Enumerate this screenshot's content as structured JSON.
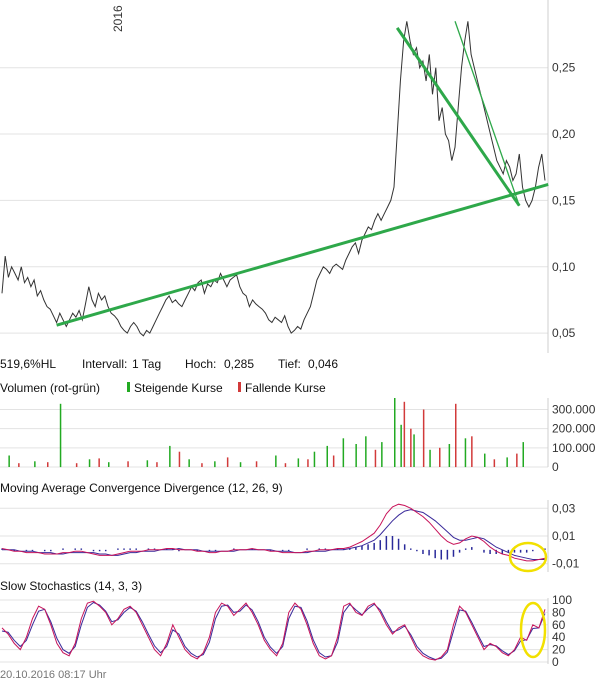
{
  "colors": {
    "price_line": "#333333",
    "trend": "#2ea84a",
    "volume_up": "#22aa22",
    "volume_down": "#d23a3a",
    "macd_line": "#c8145a",
    "signal_line": "#3a2a9a",
    "histogram": "#2a2a9a",
    "highlight": "#f2e000",
    "grid": "#e3e3e3"
  },
  "footer": {
    "timestamp": "20.10.2016 08:17 Uhr"
  },
  "chart_data": [
    {
      "type": "line",
      "panel": "price",
      "year_label": "2016",
      "y_ticks": [
        "0,05",
        "0,10",
        "0,15",
        "0,20",
        "0,25"
      ],
      "y_tick_values": [
        0.05,
        0.1,
        0.15,
        0.2,
        0.25
      ],
      "ylim": [
        0.035,
        0.295
      ],
      "stats": {
        "perf": "519,6%HL",
        "interval_label": "Intervall:",
        "interval_value": "1 Tag",
        "high_label": "Hoch:",
        "high_value": "0,285",
        "low_label": "Tief:",
        "low_value": "0,046"
      },
      "series": [
        {
          "values": [
            0.08,
            0.108,
            0.092,
            0.1,
            0.095,
            0.09,
            0.1,
            0.088,
            0.092,
            0.085,
            0.09,
            0.078,
            0.082,
            0.075,
            0.07,
            0.068,
            0.063,
            0.058,
            0.065,
            0.06,
            0.055,
            0.06,
            0.065,
            0.062,
            0.067,
            0.06,
            0.072,
            0.085,
            0.075,
            0.07,
            0.08,
            0.075,
            0.078,
            0.07,
            0.065,
            0.063,
            0.06,
            0.055,
            0.052,
            0.05,
            0.055,
            0.058,
            0.055,
            0.05,
            0.048,
            0.052,
            0.05,
            0.055,
            0.06,
            0.065,
            0.07,
            0.075,
            0.078,
            0.073,
            0.075,
            0.072,
            0.07,
            0.075,
            0.08,
            0.085,
            0.082,
            0.088,
            0.09,
            0.08,
            0.087,
            0.085,
            0.09,
            0.088,
            0.095,
            0.09,
            0.085,
            0.09,
            0.092,
            0.094,
            0.085,
            0.08,
            0.078,
            0.07,
            0.075,
            0.072,
            0.07,
            0.068,
            0.065,
            0.06,
            0.058,
            0.062,
            0.06,
            0.058,
            0.063,
            0.055,
            0.05,
            0.052,
            0.055,
            0.053,
            0.06,
            0.065,
            0.07,
            0.08,
            0.09,
            0.095,
            0.1,
            0.098,
            0.095,
            0.1,
            0.102,
            0.1,
            0.098,
            0.105,
            0.11,
            0.115,
            0.118,
            0.11,
            0.12,
            0.125,
            0.13,
            0.128,
            0.135,
            0.14,
            0.135,
            0.14,
            0.145,
            0.15,
            0.16,
            0.2,
            0.24,
            0.27,
            0.285,
            0.27,
            0.26,
            0.265,
            0.25,
            0.255,
            0.24,
            0.26,
            0.23,
            0.25,
            0.21,
            0.22,
            0.2,
            0.195,
            0.18,
            0.19,
            0.22,
            0.25,
            0.27,
            0.285,
            0.26,
            0.25,
            0.24,
            0.23,
            0.22,
            0.21,
            0.2,
            0.19,
            0.18,
            0.175,
            0.17,
            0.18,
            0.175,
            0.165,
            0.17,
            0.185,
            0.16,
            0.15,
            0.145,
            0.15,
            0.16,
            0.175,
            0.185,
            0.165
          ]
        }
      ],
      "trendlines": [
        {
          "from_index": 17,
          "from_value": 0.056,
          "to_index": 170,
          "to_value": 0.162
        },
        {
          "from_index": 123,
          "from_value": 0.28,
          "to_index": 161,
          "to_value": 0.146
        },
        {
          "from_index": 141,
          "from_value": 0.285,
          "to_index": 161,
          "to_value": 0.146
        }
      ]
    },
    {
      "type": "bar",
      "panel": "volume",
      "title": "Volumen (rot-grün)",
      "legend": [
        {
          "name": "Steigende Kurse",
          "color": "#22aa22"
        },
        {
          "name": "Fallende Kurse",
          "color": "#d23a3a"
        }
      ],
      "y_ticks": [
        "0",
        "100.000",
        "200.000",
        "300.000"
      ],
      "y_tick_values": [
        0,
        100000,
        200000,
        300000
      ],
      "ylim": [
        0,
        360000
      ],
      "series": [
        {
          "name": "up",
          "values": [
            {
              "i": 2,
              "v": 60000
            },
            {
              "i": 10,
              "v": 30000
            },
            {
              "i": 18,
              "v": 330000
            },
            {
              "i": 27,
              "v": 40000
            },
            {
              "i": 33,
              "v": 25000
            },
            {
              "i": 45,
              "v": 35000
            },
            {
              "i": 52,
              "v": 110000
            },
            {
              "i": 58,
              "v": 40000
            },
            {
              "i": 66,
              "v": 30000
            },
            {
              "i": 74,
              "v": 25000
            },
            {
              "i": 85,
              "v": 60000
            },
            {
              "i": 92,
              "v": 45000
            },
            {
              "i": 97,
              "v": 80000
            },
            {
              "i": 101,
              "v": 110000
            },
            {
              "i": 106,
              "v": 150000
            },
            {
              "i": 110,
              "v": 120000
            },
            {
              "i": 113,
              "v": 160000
            },
            {
              "i": 118,
              "v": 130000
            },
            {
              "i": 122,
              "v": 360000
            },
            {
              "i": 124,
              "v": 220000
            },
            {
              "i": 128,
              "v": 170000
            },
            {
              "i": 133,
              "v": 90000
            },
            {
              "i": 139,
              "v": 120000
            },
            {
              "i": 144,
              "v": 150000
            },
            {
              "i": 150,
              "v": 70000
            },
            {
              "i": 157,
              "v": 50000
            },
            {
              "i": 162,
              "v": 130000
            }
          ]
        },
        {
          "name": "down",
          "values": [
            {
              "i": 5,
              "v": 20000
            },
            {
              "i": 14,
              "v": 25000
            },
            {
              "i": 23,
              "v": 20000
            },
            {
              "i": 30,
              "v": 45000
            },
            {
              "i": 39,
              "v": 30000
            },
            {
              "i": 48,
              "v": 25000
            },
            {
              "i": 55,
              "v": 80000
            },
            {
              "i": 62,
              "v": 20000
            },
            {
              "i": 70,
              "v": 50000
            },
            {
              "i": 79,
              "v": 30000
            },
            {
              "i": 88,
              "v": 20000
            },
            {
              "i": 95,
              "v": 40000
            },
            {
              "i": 103,
              "v": 60000
            },
            {
              "i": 116,
              "v": 90000
            },
            {
              "i": 125,
              "v": 340000
            },
            {
              "i": 127,
              "v": 200000
            },
            {
              "i": 131,
              "v": 300000
            },
            {
              "i": 136,
              "v": 100000
            },
            {
              "i": 141,
              "v": 330000
            },
            {
              "i": 146,
              "v": 160000
            },
            {
              "i": 153,
              "v": 40000
            },
            {
              "i": 160,
              "v": 70000
            }
          ]
        }
      ]
    },
    {
      "type": "line",
      "panel": "macd",
      "title": "Moving Average Convergence Divergence (12, 26, 9)",
      "y_ticks": [
        "-0,01",
        "0,01",
        "0,03"
      ],
      "y_tick_values": [
        -0.01,
        0.01,
        0.03
      ],
      "ylim": [
        -0.016,
        0.036
      ],
      "series": [
        {
          "name": "macd",
          "values": [
            0.001,
            0.0,
            -0.001,
            -0.001,
            -0.002,
            -0.002,
            -0.002,
            -0.003,
            -0.003,
            -0.003,
            -0.002,
            -0.002,
            -0.001,
            -0.001,
            -0.002,
            -0.003,
            -0.004,
            -0.004,
            -0.004,
            -0.003,
            -0.002,
            -0.001,
            -0.001,
            -0.001,
            0.0,
            0.0,
            0.0,
            0.001,
            0.001,
            0.0,
            0.0,
            0.0,
            -0.001,
            -0.001,
            -0.002,
            -0.002,
            -0.001,
            -0.001,
            0.0,
            0.0,
            0.0,
            0.001,
            0.0,
            0.0,
            -0.001,
            -0.001,
            -0.002,
            -0.002,
            -0.002,
            -0.002,
            -0.001,
            -0.001,
            0.0,
            0.0,
            0.0,
            0.001,
            0.001,
            0.002,
            0.004,
            0.006,
            0.009,
            0.012,
            0.018,
            0.026,
            0.031,
            0.033,
            0.032,
            0.03,
            0.027,
            0.024,
            0.02,
            0.015,
            0.01,
            0.006,
            0.004,
            0.005,
            0.008,
            0.01,
            0.009,
            0.006,
            0.002,
            -0.001,
            -0.003,
            -0.004,
            -0.006,
            -0.007,
            -0.008,
            -0.008,
            -0.007,
            -0.006
          ]
        },
        {
          "name": "signal",
          "values": [
            0.0,
            0.0,
            0.0,
            -0.001,
            -0.001,
            -0.001,
            -0.002,
            -0.002,
            -0.002,
            -0.003,
            -0.003,
            -0.002,
            -0.002,
            -0.002,
            -0.002,
            -0.002,
            -0.003,
            -0.003,
            -0.004,
            -0.004,
            -0.003,
            -0.002,
            -0.002,
            -0.001,
            -0.001,
            -0.001,
            0.0,
            0.0,
            0.0,
            0.001,
            0.0,
            0.0,
            0.0,
            -0.001,
            -0.001,
            -0.001,
            -0.001,
            -0.001,
            -0.001,
            0.0,
            0.0,
            0.0,
            0.0,
            0.0,
            0.0,
            -0.001,
            -0.001,
            -0.001,
            -0.002,
            -0.002,
            -0.002,
            -0.001,
            -0.001,
            -0.001,
            0.0,
            0.0,
            0.0,
            0.001,
            0.002,
            0.003,
            0.005,
            0.007,
            0.011,
            0.016,
            0.021,
            0.025,
            0.028,
            0.029,
            0.028,
            0.027,
            0.024,
            0.021,
            0.017,
            0.013,
            0.009,
            0.007,
            0.007,
            0.008,
            0.009,
            0.008,
            0.005,
            0.002,
            0.0,
            -0.002,
            -0.004,
            -0.005,
            -0.006,
            -0.007,
            -0.007,
            -0.007
          ]
        },
        {
          "name": "histogram",
          "values": [
            0.001,
            0.0,
            -0.001,
            0.0,
            -0.001,
            -0.001,
            0.0,
            -0.001,
            -0.001,
            0.0,
            0.001,
            0.0,
            0.001,
            0.001,
            0.0,
            -0.001,
            -0.001,
            -0.001,
            0.0,
            0.001,
            0.001,
            0.001,
            0.001,
            0.0,
            0.001,
            0.001,
            0.0,
            0.001,
            0.001,
            -0.001,
            0.0,
            0.0,
            -0.001,
            0.0,
            -0.001,
            -0.001,
            0.0,
            0.0,
            0.001,
            0.0,
            0.0,
            0.001,
            0.0,
            0.0,
            -0.001,
            0.0,
            -0.001,
            -0.001,
            0.0,
            0.0,
            0.001,
            0.0,
            0.001,
            0.001,
            0.0,
            0.001,
            0.001,
            0.001,
            0.002,
            0.003,
            0.004,
            0.005,
            0.007,
            0.01,
            0.01,
            0.008,
            0.004,
            0.001,
            -0.001,
            -0.003,
            -0.004,
            -0.006,
            -0.007,
            -0.007,
            -0.005,
            -0.002,
            0.001,
            0.002,
            0.0,
            -0.002,
            -0.003,
            -0.003,
            -0.003,
            -0.002,
            -0.002,
            -0.002,
            -0.002,
            -0.001,
            0.0,
            0.001
          ]
        }
      ]
    },
    {
      "type": "line",
      "panel": "stochastics",
      "title": "Slow Stochastics (14, 3, 3)",
      "y_ticks": [
        "0",
        "20",
        "40",
        "60",
        "80",
        "100"
      ],
      "y_tick_values": [
        0,
        20,
        40,
        60,
        80,
        100
      ],
      "ylim": [
        0,
        100
      ],
      "series": [
        {
          "name": "k",
          "values": [
            55,
            45,
            30,
            20,
            40,
            70,
            90,
            85,
            60,
            30,
            15,
            10,
            30,
            70,
            95,
            98,
            90,
            80,
            60,
            70,
            85,
            90,
            80,
            60,
            40,
            20,
            10,
            30,
            60,
            40,
            20,
            10,
            5,
            15,
            40,
            80,
            95,
            90,
            75,
            85,
            95,
            80,
            60,
            35,
            20,
            10,
            30,
            80,
            95,
            85,
            60,
            30,
            10,
            5,
            10,
            40,
            90,
            95,
            80,
            75,
            90,
            95,
            80,
            60,
            45,
            55,
            60,
            40,
            20,
            10,
            5,
            3,
            8,
            20,
            60,
            90,
            80,
            60,
            40,
            20,
            30,
            25,
            15,
            10,
            20,
            40,
            35,
            60,
            55,
            85
          ]
        },
        {
          "name": "d",
          "values": [
            50,
            48,
            35,
            25,
            35,
            60,
            82,
            85,
            65,
            38,
            20,
            14,
            25,
            60,
            88,
            96,
            92,
            82,
            65,
            68,
            80,
            88,
            82,
            65,
            45,
            26,
            15,
            25,
            52,
            45,
            25,
            14,
            8,
            12,
            32,
            70,
            90,
            92,
            80,
            82,
            92,
            84,
            65,
            40,
            24,
            14,
            25,
            70,
            90,
            88,
            66,
            36,
            15,
            8,
            10,
            32,
            80,
            93,
            84,
            76,
            86,
            93,
            84,
            65,
            48,
            52,
            58,
            44,
            25,
            14,
            8,
            4,
            6,
            16,
            50,
            84,
            82,
            64,
            44,
            25,
            28,
            26,
            18,
            12,
            18,
            34,
            36,
            54,
            55,
            78
          ]
        }
      ]
    }
  ]
}
